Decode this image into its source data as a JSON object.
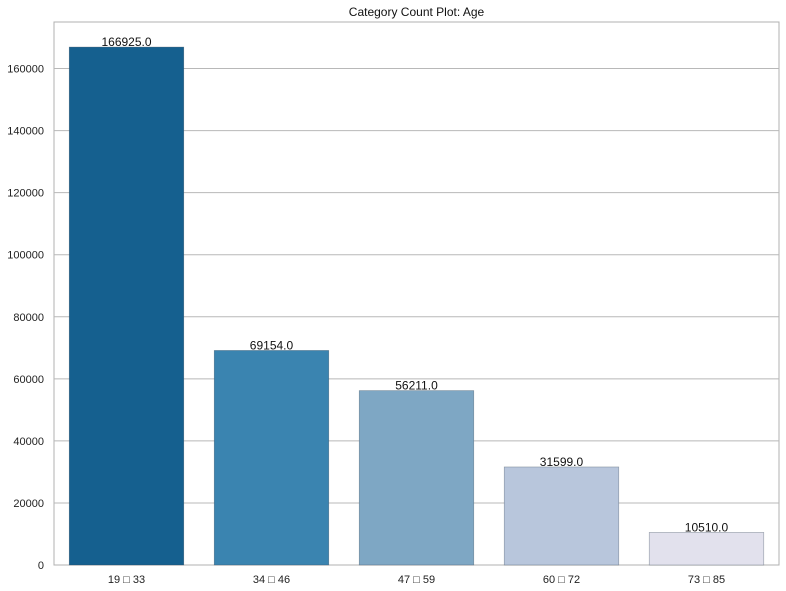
{
  "chart_data": {
    "type": "bar",
    "title": "Category Count Plot: Age",
    "xlabel": "",
    "ylabel": "",
    "categories": [
      "19 □ 33",
      "34 □ 46",
      "47 □ 59",
      "60 □ 72",
      "73 □ 85"
    ],
    "values": [
      166925,
      69154,
      56211,
      31599,
      10510
    ],
    "data_labels": [
      "166925.0",
      "69154.0",
      "56211.0",
      "31599.0",
      "10510.0"
    ],
    "colors": [
      "#15608f",
      "#3a84b0",
      "#7ea7c4",
      "#b8c6dc",
      "#e2e1ed"
    ],
    "yticks": [
      0,
      20000,
      40000,
      60000,
      80000,
      100000,
      120000,
      140000,
      160000
    ],
    "ytick_labels": [
      "0",
      "20000",
      "40000",
      "60000",
      "80000",
      "100000",
      "120000",
      "140000",
      "160000"
    ],
    "ylim": [
      0,
      175000
    ],
    "grid": "horizontal",
    "legend": "none"
  }
}
